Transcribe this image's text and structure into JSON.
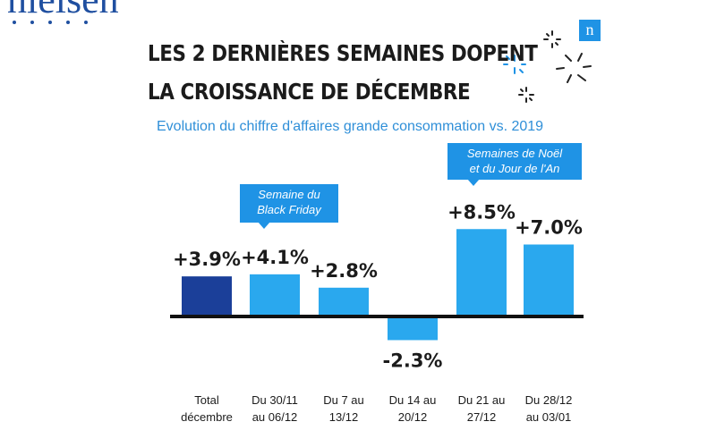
{
  "brand": {
    "wordmark": "nielsen",
    "badge": "n"
  },
  "title_line1": "LES 2 DERNIÈRES SEMAINES DOPENT",
  "title_line2": "LA CROISSANCE DE DÉCEMBRE",
  "subtitle": "Evolution du chiffre d'affaires grande consommation vs. 2019",
  "callouts": {
    "black_friday": [
      "Semaine du",
      "Black Friday"
    ],
    "noel": [
      "Semaines de Noël",
      "et du Jour de l'An"
    ]
  },
  "colors": {
    "dark_bar": "#1b3f99",
    "light_bar": "#2aa8ee",
    "accent": "#1f93e5"
  },
  "chart_data": {
    "type": "bar",
    "categories": [
      [
        "Total",
        "décembre"
      ],
      [
        "Du 30/11",
        "au 06/12"
      ],
      [
        "Du 7 au",
        "13/12"
      ],
      [
        "Du 14 au",
        "20/12"
      ],
      [
        "Du 21 au",
        "27/12"
      ],
      [
        "Du 28/12",
        "au 03/01"
      ]
    ],
    "values": [
      3.9,
      4.1,
      2.8,
      -2.3,
      8.5,
      7.0
    ],
    "value_labels": [
      "+3.9%",
      "+4.1%",
      "+2.8%",
      "-2.3%",
      "+8.5%",
      "+7.0%"
    ],
    "ylim": [
      -2.3,
      8.5
    ],
    "grid": false,
    "legend": "none"
  }
}
